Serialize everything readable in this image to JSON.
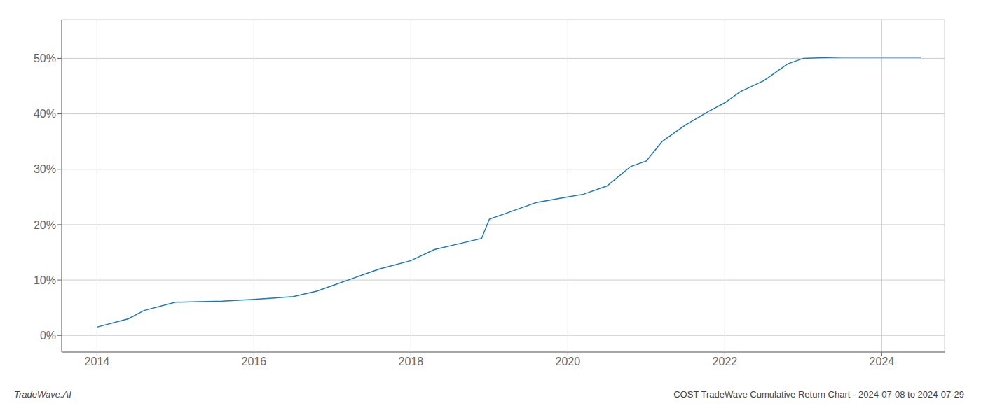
{
  "chart_data": {
    "type": "line",
    "title": "COST TradeWave Cumulative Return Chart - 2024-07-08 to 2024-07-29",
    "annotations": [
      "TradeWave.AI"
    ],
    "x": [
      2014.0,
      2014.4,
      2014.6,
      2015.0,
      2015.3,
      2015.6,
      2016.0,
      2016.2,
      2016.5,
      2016.8,
      2017.0,
      2017.3,
      2017.6,
      2018.0,
      2018.3,
      2018.6,
      2018.9,
      2019.0,
      2019.2,
      2019.4,
      2019.6,
      2019.8,
      2020.0,
      2020.2,
      2020.5,
      2020.8,
      2021.0,
      2021.2,
      2021.5,
      2021.8,
      2022.0,
      2022.2,
      2022.5,
      2022.8,
      2023.0,
      2023.2,
      2023.5,
      2024.0,
      2024.5
    ],
    "values": [
      1.5,
      3.0,
      4.5,
      6.0,
      6.1,
      6.2,
      6.5,
      6.7,
      7.0,
      8.0,
      9.0,
      10.5,
      12.0,
      13.5,
      15.5,
      16.5,
      17.5,
      21.0,
      22.0,
      23.0,
      24.0,
      24.5,
      25.0,
      25.5,
      27.0,
      30.5,
      31.5,
      35.0,
      38.0,
      40.5,
      42.0,
      44.0,
      46.0,
      49.0,
      50.0,
      50.1,
      50.2,
      50.2,
      50.2
    ],
    "color": "#1f77b4",
    "xlim": [
      2013.55,
      2024.8
    ],
    "xticks": [
      2014,
      2016,
      2018,
      2020,
      2022,
      2024
    ],
    "ylim": [
      -3,
      57
    ],
    "yticks": [
      {
        "value": 0,
        "label": "0%"
      },
      {
        "value": 10,
        "label": "10%"
      },
      {
        "value": 20,
        "label": "20%"
      },
      {
        "value": 30,
        "label": "30%"
      },
      {
        "value": 40,
        "label": "40%"
      },
      {
        "value": 50,
        "label": "50%"
      }
    ],
    "grid": true
  }
}
